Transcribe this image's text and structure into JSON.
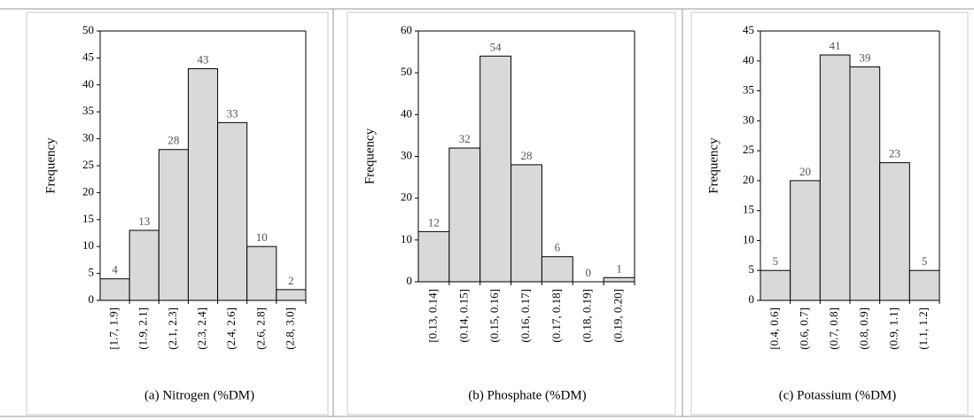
{
  "chart_data": [
    {
      "type": "bar",
      "xlabel": "(a) Nitrogen (%DM)",
      "ylabel": "Frequency",
      "categories": [
        "[1.7, 1.9]",
        "(1.9, 2.1]",
        "(2.1, 2.3]",
        "(2.3, 2.4]",
        "(2.4, 2.6]",
        "(2.6, 2.8]",
        "(2.8, 3.0]"
      ],
      "values": [
        4,
        13,
        28,
        43,
        33,
        10,
        2
      ],
      "color": "#d9d9d9",
      "ylim": [
        0,
        50
      ],
      "yticks": [
        0,
        5,
        10,
        15,
        20,
        25,
        30,
        35,
        40,
        45,
        50
      ]
    },
    {
      "type": "bar",
      "xlabel": "(b) Phosphate (%DM)",
      "ylabel": "Frequency",
      "categories": [
        "[0.13, 0.14]",
        "(0.14, 0.15]",
        "(0.15, 0.16]",
        "(0.16, 0.17]",
        "(0.17, 0.18]",
        "(0.18, 0.19]",
        "(0.19, 0.20]"
      ],
      "values": [
        12,
        32,
        54,
        28,
        6,
        0,
        1
      ],
      "color": "#d9d9d9",
      "ylim": [
        0,
        60
      ],
      "yticks": [
        0,
        10,
        20,
        30,
        40,
        50,
        60
      ]
    },
    {
      "type": "bar",
      "xlabel": "(c) Potassium (%DM)",
      "ylabel": "Frequency",
      "categories": [
        "[0.4, 0.6]",
        "(0.6, 0.7]",
        "(0.7, 0.8]",
        "(0.8, 0.9]",
        "(0.9, 1.1]",
        "(1.1, 1.2]"
      ],
      "values": [
        5,
        20,
        41,
        39,
        23,
        5
      ],
      "color": "#d9d9d9",
      "ylim": [
        0,
        45
      ],
      "yticks": [
        0,
        5,
        10,
        15,
        20,
        25,
        30,
        35,
        40,
        45
      ]
    }
  ]
}
